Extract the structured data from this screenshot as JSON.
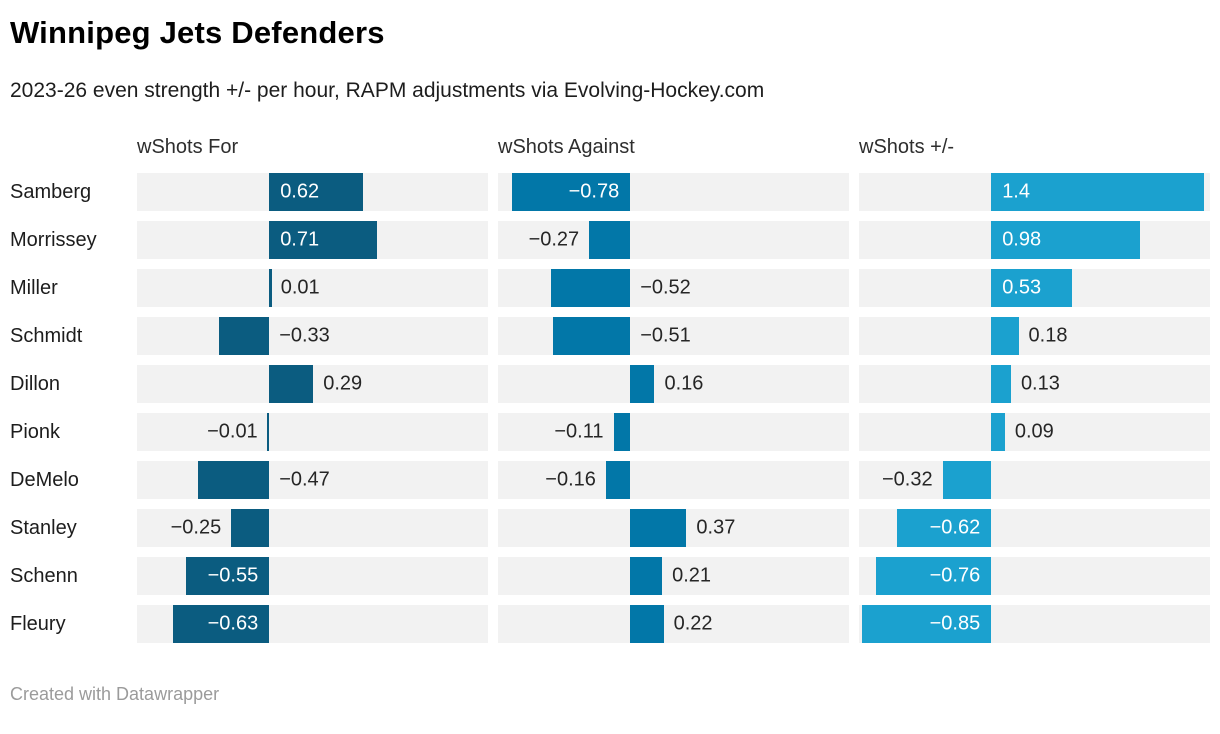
{
  "footer": {
    "credit": "Created with Datawrapper"
  },
  "chart_data": {
    "type": "bar",
    "layout": "horizontal-split-columns",
    "title": "Winnipeg Jets Defenders",
    "subtitle": "2023-26 even strength +/- per hour, RAPM adjustments via Evolving-Hockey.com",
    "columns": [
      "wShots For",
      "wShots Against",
      "wShots +/-"
    ],
    "categories": [
      "Samberg",
      "Morrissey",
      "Miller",
      "Schmidt",
      "Dillon",
      "Pionk",
      "DeMelo",
      "Stanley",
      "Schenn",
      "Fleury"
    ],
    "xlim": [
      -0.87,
      1.44
    ],
    "grid": "off",
    "legend": "none",
    "value_labels": "on",
    "series": [
      {
        "name": "wShots For",
        "color": "#0b5c80",
        "values": [
          0.62,
          0.71,
          0.01,
          -0.33,
          0.29,
          -0.01,
          -0.47,
          -0.25,
          -0.55,
          -0.63
        ],
        "labels": [
          "0.62",
          "0.71",
          "0.01",
          "−0.33",
          "0.29",
          "−0.01",
          "−0.47",
          "−0.25",
          "−0.55",
          "−0.63"
        ],
        "label_pos": [
          "inside",
          "inside",
          "after",
          "after",
          "after",
          "before",
          "after",
          "before",
          "inside",
          "inside"
        ]
      },
      {
        "name": "wShots Against",
        "color": "#0277a8",
        "values": [
          -0.78,
          -0.27,
          -0.52,
          -0.51,
          0.16,
          -0.11,
          -0.16,
          0.37,
          0.21,
          0.22
        ],
        "labels": [
          "−0.78",
          "−0.27",
          "−0.52",
          "−0.51",
          "0.16",
          "−0.11",
          "−0.16",
          "0.37",
          "0.21",
          "0.22"
        ],
        "label_pos": [
          "inside",
          "before",
          "after",
          "after",
          "after",
          "before",
          "before",
          "after",
          "after",
          "after"
        ]
      },
      {
        "name": "wShots +/-",
        "color": "#1ba1cf",
        "values": [
          1.4,
          0.98,
          0.53,
          0.18,
          0.13,
          0.09,
          -0.32,
          -0.62,
          -0.76,
          -0.85
        ],
        "labels": [
          "1.4",
          "0.98",
          "0.53",
          "0.18",
          "0.13",
          "0.09",
          "−0.32",
          "−0.62",
          "−0.76",
          "−0.85"
        ],
        "label_pos": [
          "inside",
          "inside",
          "inside",
          "after",
          "after",
          "after",
          "before",
          "inside",
          "inside",
          "inside"
        ]
      }
    ],
    "track_background": "#f2f2f2",
    "inside_label_color": "#ffffff",
    "outside_label_color": "#262626"
  }
}
